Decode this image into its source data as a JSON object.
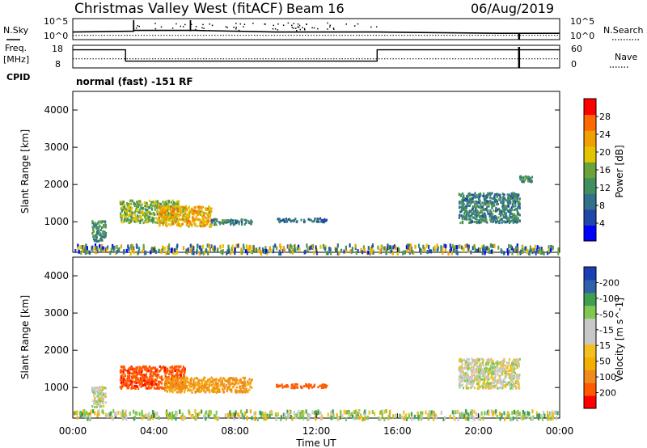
{
  "header": {
    "title": "Christmas Valley West (fitACF)",
    "beam": "Beam 16",
    "date": "06/Aug/2019"
  },
  "labels": {
    "nsky": "N.Sky",
    "nsearch": "N.Search",
    "freq_top": "Freq.",
    "freq_unit": "[MHz]",
    "nave": "Nave",
    "cpid": "CPID",
    "cpid_value": "normal (fast) -151 RF",
    "slant_range": "Slant Range [km]",
    "xlabel": "Time UT"
  },
  "colors": {
    "power": [
      "#0000ff",
      "#1f46a8",
      "#33708c",
      "#3f8f5f",
      "#6aa33a",
      "#e3c400",
      "#f0a000",
      "#ff6a00",
      "#ff0000"
    ],
    "velocity": [
      "#ff0000",
      "#ff5a00",
      "#f08c1e",
      "#f4b000",
      "#f4c020",
      "#c8c8c8",
      "#c8c8c8",
      "#7fc850",
      "#3f9f4f",
      "#2f62a8",
      "#1a3fb5"
    ],
    "line": "#000000"
  },
  "chart_data": [
    {
      "type": "line",
      "title": "N.Sky / N.Search",
      "y_left_ticks": [
        "10^5",
        "10^0"
      ],
      "y_right_ticks": [
        "10^5",
        "10^0"
      ],
      "series": [
        {
          "name": "N.Sky",
          "x": [
            0,
            3,
            3.01,
            6,
            10,
            15,
            21,
            24
          ],
          "values": [
            1.8,
            2,
            2.2,
            2.2,
            1.8,
            1.8,
            1.5,
            1.5
          ]
        },
        {
          "name": "N.Search",
          "x": [
            0,
            24
          ],
          "values": [
            1,
            1
          ]
        }
      ]
    },
    {
      "type": "line",
      "title": "Freq. [MHz] / Nave",
      "y_left_ticks": [
        "18",
        "8"
      ],
      "y_right_ticks": [
        "60",
        "0"
      ],
      "series": [
        {
          "name": "Freq.",
          "x": [
            0,
            2.6,
            2.6,
            15,
            15,
            24
          ],
          "values": [
            16,
            16,
            11,
            11,
            16,
            16
          ]
        },
        {
          "name": "Nave",
          "x": [
            0,
            24
          ],
          "values": [
            12,
            12
          ]
        }
      ]
    },
    {
      "type": "heatmap",
      "title": "Power",
      "colorbar_label": "Power [dB]",
      "colorbar_ticks": [
        "28",
        "24",
        "20",
        "16",
        "12",
        "8",
        "4"
      ],
      "xlabel": "Time UT",
      "ylabel": "Slant Range [km]",
      "xlim": [
        0,
        24
      ],
      "ylim": [
        180,
        4500
      ],
      "yticks": [
        1000,
        2000,
        3000,
        4000
      ],
      "echo_regions": [
        {
          "t": [
            0.9,
            1.6
          ],
          "r": [
            500,
            1050
          ],
          "v": 14
        },
        {
          "t": [
            2.3,
            5.2
          ],
          "r": [
            1000,
            1600
          ],
          "v": 18
        },
        {
          "t": [
            4.2,
            6.8
          ],
          "r": [
            900,
            1450
          ],
          "v": 24
        },
        {
          "t": [
            6.8,
            8.8
          ],
          "r": [
            950,
            1100
          ],
          "v": 12
        },
        {
          "t": [
            10.0,
            12.5
          ],
          "r": [
            1020,
            1120
          ],
          "v": 10
        },
        {
          "t": [
            19.0,
            22.0
          ],
          "r": [
            1000,
            1800
          ],
          "v": 12
        },
        {
          "t": [
            22.0,
            22.6
          ],
          "r": [
            2100,
            2250
          ],
          "v": 14
        },
        {
          "t": [
            0,
            24
          ],
          "r": [
            200,
            420
          ],
          "v": 12
        }
      ]
    },
    {
      "type": "heatmap",
      "title": "Velocity",
      "colorbar_label": "Velocity [m s^-1]",
      "colorbar_ticks": [
        "200",
        "100",
        "50",
        "15",
        "-15",
        "-50",
        "-100",
        "-200"
      ],
      "xlabel": "Time UT",
      "ylabel": "Slant Range [km]",
      "xlim": [
        0,
        24
      ],
      "ylim": [
        180,
        4500
      ],
      "yticks": [
        1000,
        2000,
        3000,
        4000
      ],
      "xticks": [
        "00:00",
        "04:00",
        "08:00",
        "12:00",
        "16:00",
        "20:00",
        "00:00"
      ],
      "echo_regions": [
        {
          "t": [
            0.9,
            1.6
          ],
          "r": [
            500,
            1050
          ],
          "v": 0
        },
        {
          "t": [
            2.3,
            5.5
          ],
          "r": [
            1000,
            1600
          ],
          "v": -180
        },
        {
          "t": [
            4.5,
            8.8
          ],
          "r": [
            900,
            1300
          ],
          "v": -60
        },
        {
          "t": [
            10.0,
            12.5
          ],
          "r": [
            1020,
            1120
          ],
          "v": -150
        },
        {
          "t": [
            19.0,
            22.0
          ],
          "r": [
            1000,
            1800
          ],
          "v": 0
        },
        {
          "t": [
            0,
            24
          ],
          "r": [
            200,
            420
          ],
          "v": 20
        }
      ]
    }
  ]
}
